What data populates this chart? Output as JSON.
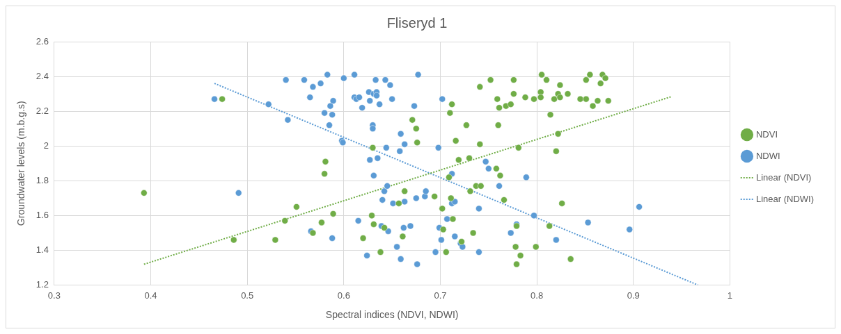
{
  "chart_data": {
    "type": "scatter",
    "title": "Fliseryd 1",
    "xlabel": "Spectral indices (NDVI, NDWI)",
    "ylabel": "Groundwater levels (m.b.g.s)",
    "xlim": [
      0.3,
      1
    ],
    "xticks": [
      0.3,
      0.4,
      0.5,
      0.6,
      0.7,
      0.8,
      0.9,
      1
    ],
    "ylim": [
      1.2,
      2.6
    ],
    "yticks": [
      1.2,
      1.4,
      1.6,
      1.8,
      2,
      2.2,
      2.4,
      2.6
    ],
    "grid": true,
    "legend": "right",
    "marker": "circle",
    "series": [
      {
        "name": "NDVI",
        "color": "#70ad47",
        "x": [
          0.393,
          0.474,
          0.486,
          0.529,
          0.539,
          0.551,
          0.568,
          0.577,
          0.58,
          0.581,
          0.589,
          0.62,
          0.629,
          0.63,
          0.631,
          0.638,
          0.642,
          0.661,
          0.663,
          0.657,
          0.671,
          0.675,
          0.676,
          0.694,
          0.702,
          0.703,
          0.706,
          0.709,
          0.71,
          0.711,
          0.712,
          0.713,
          0.716,
          0.719,
          0.722,
          0.727,
          0.73,
          0.731,
          0.734,
          0.737,
          0.741,
          0.741,
          0.742,
          0.752,
          0.759,
          0.758,
          0.76,
          0.761,
          0.762,
          0.766,
          0.768,
          0.773,
          0.776,
          0.776,
          0.778,
          0.779,
          0.779,
          0.781,
          0.783,
          0.788,
          0.797,
          0.799,
          0.805,
          0.804,
          0.804,
          0.81,
          0.814,
          0.813,
          0.818,
          0.82,
          0.822,
          0.822,
          0.824,
          0.824,
          0.826,
          0.832,
          0.835,
          0.845,
          0.851,
          0.851,
          0.855,
          0.858,
          0.863,
          0.866,
          0.868,
          0.871,
          0.874
        ],
        "values": [
          1.73,
          2.27,
          1.46,
          1.46,
          1.57,
          1.65,
          1.5,
          1.56,
          1.84,
          1.91,
          1.61,
          1.47,
          1.6,
          1.99,
          1.55,
          1.39,
          1.53,
          1.48,
          1.74,
          1.67,
          2.15,
          2.1,
          2.02,
          1.71,
          1.64,
          1.52,
          1.39,
          1.82,
          2.19,
          1.7,
          2.24,
          1.58,
          2.03,
          1.92,
          1.45,
          2.12,
          1.93,
          1.74,
          1.5,
          1.77,
          2.34,
          2.01,
          1.77,
          2.38,
          2.27,
          1.87,
          2.12,
          2.22,
          1.83,
          1.69,
          2.23,
          2.24,
          2.38,
          2.3,
          1.42,
          1.54,
          1.32,
          1.99,
          1.37,
          2.28,
          2.27,
          1.42,
          2.41,
          2.31,
          2.28,
          2.38,
          2.18,
          1.54,
          2.27,
          1.97,
          2.07,
          2.3,
          2.35,
          2.28,
          1.67,
          2.3,
          1.35,
          2.27,
          2.27,
          2.38,
          2.41,
          2.23,
          2.26,
          2.36,
          2.41,
          2.39,
          2.26
        ]
      },
      {
        "name": "NDWI",
        "color": "#5b9bd5",
        "x": [
          0.466,
          0.491,
          0.522,
          0.54,
          0.542,
          0.559,
          0.565,
          0.566,
          0.568,
          0.576,
          0.58,
          0.583,
          0.585,
          0.586,
          0.589,
          0.588,
          0.588,
          0.598,
          0.599,
          0.6,
          0.611,
          0.611,
          0.613,
          0.615,
          0.616,
          0.619,
          0.624,
          0.626,
          0.627,
          0.627,
          0.63,
          0.63,
          0.631,
          0.631,
          0.633,
          0.634,
          0.634,
          0.635,
          0.637,
          0.639,
          0.64,
          0.642,
          0.643,
          0.644,
          0.645,
          0.646,
          0.648,
          0.65,
          0.651,
          0.655,
          0.658,
          0.659,
          0.659,
          0.662,
          0.663,
          0.663,
          0.669,
          0.673,
          0.675,
          0.676,
          0.677,
          0.684,
          0.685,
          0.695,
          0.698,
          0.699,
          0.702,
          0.701,
          0.707,
          0.712,
          0.712,
          0.715,
          0.715,
          0.721,
          0.723,
          0.74,
          0.74,
          0.747,
          0.75,
          0.761,
          0.773,
          0.779,
          0.789,
          0.797,
          0.82,
          0.853,
          0.896,
          0.906
        ],
        "values": [
          2.27,
          1.73,
          2.24,
          2.38,
          2.15,
          2.38,
          2.28,
          1.51,
          2.34,
          2.36,
          2.19,
          2.41,
          2.12,
          2.23,
          2.26,
          2.18,
          1.47,
          2.03,
          2.02,
          2.39,
          2.41,
          2.28,
          2.27,
          1.57,
          2.28,
          2.22,
          1.37,
          2.31,
          1.92,
          2.26,
          2.12,
          2.1,
          1.83,
          2.3,
          2.38,
          2.31,
          2.29,
          1.93,
          2.24,
          1.54,
          1.69,
          1.74,
          2.38,
          1.99,
          1.77,
          1.51,
          2.35,
          2.27,
          1.67,
          1.42,
          1.97,
          2.07,
          1.35,
          1.53,
          2.01,
          1.68,
          1.54,
          2.23,
          1.7,
          1.32,
          2.41,
          1.71,
          1.74,
          1.39,
          1.99,
          1.53,
          2.27,
          1.46,
          1.58,
          1.84,
          1.67,
          1.68,
          1.48,
          1.44,
          1.42,
          1.64,
          1.39,
          1.91,
          1.87,
          1.77,
          1.5,
          1.55,
          1.82,
          1.6,
          1.46,
          1.56,
          1.52,
          1.65
        ]
      },
      {
        "name": "Linear (NDVI)",
        "type": "line",
        "line_style": "dotted",
        "marker": "none",
        "color": "#70ad47",
        "x": [
          0.393,
          0.94
        ],
        "values": [
          1.32,
          2.285
        ]
      },
      {
        "name": "Linear (NDWI)",
        "type": "line",
        "line_style": "dotted",
        "marker": "none",
        "color": "#5b9bd5",
        "x": [
          0.466,
          0.967
        ],
        "values": [
          2.36,
          1.2
        ]
      }
    ]
  }
}
